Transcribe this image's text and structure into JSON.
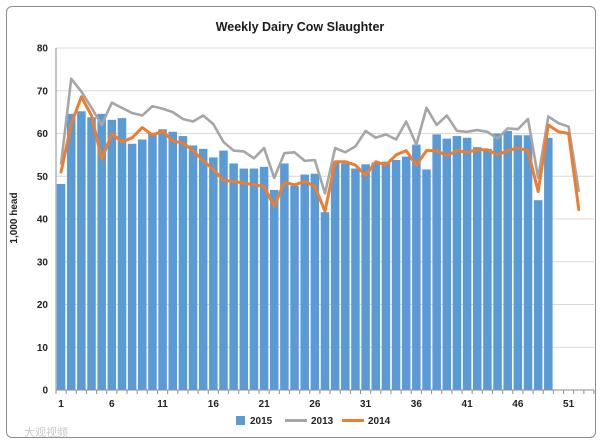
{
  "chart_data": {
    "type": "bar",
    "title": "Weekly Dairy Cow Slaughter",
    "ylabel": "1,000 head",
    "xlabel": "",
    "ylim": [
      0,
      80
    ],
    "yticks": [
      0,
      10,
      20,
      30,
      40,
      50,
      60,
      70,
      80
    ],
    "xtick_labels": [
      "1",
      "6",
      "11",
      "16",
      "21",
      "26",
      "31",
      "36",
      "41",
      "46",
      "51"
    ],
    "grid": true,
    "legend_position": "bottom",
    "series": [
      {
        "name": "2015",
        "type": "bar",
        "color": "#5b9bd5",
        "values": [
          48.2,
          64.6,
          65.2,
          63.8,
          64.6,
          63.2,
          63.6,
          57.6,
          58.6,
          60.2,
          61.0,
          60.4,
          59.4,
          57.2,
          56.4,
          54.4,
          56.0,
          53.0,
          51.8,
          51.8,
          52.2,
          46.8,
          53.0,
          47.8,
          50.4,
          50.6,
          41.6,
          53.4,
          53.0,
          51.8,
          52.8,
          53.2,
          53.4,
          53.8,
          54.6,
          57.4,
          51.6,
          59.8,
          58.8,
          59.4,
          59.0,
          56.8,
          56.4,
          60.0,
          60.6,
          59.6,
          59.6,
          44.4,
          59.0
        ]
      },
      {
        "name": "2013",
        "type": "line",
        "color": "#a6a6a6",
        "values": [
          53.0,
          72.8,
          69.8,
          66.0,
          62.0,
          67.2,
          66.0,
          64.8,
          64.2,
          66.4,
          65.8,
          65.0,
          63.4,
          62.8,
          64.2,
          62.2,
          58.0,
          56.0,
          55.8,
          54.2,
          56.6,
          49.6,
          55.4,
          55.6,
          53.6,
          53.8,
          46.0,
          56.6,
          55.6,
          57.0,
          60.6,
          59.0,
          59.8,
          58.6,
          62.8,
          57.4,
          66.0,
          62.0,
          64.2,
          60.6,
          60.4,
          60.8,
          60.4,
          58.8,
          61.2,
          61.0,
          63.4,
          49.6,
          64.0,
          62.4,
          61.6,
          46.6
        ]
      },
      {
        "name": "2014",
        "type": "line",
        "color": "#ed7d31",
        "values": [
          51.0,
          62.2,
          68.6,
          64.2,
          54.0,
          60.0,
          58.0,
          59.0,
          61.4,
          59.6,
          60.6,
          58.2,
          57.8,
          56.0,
          53.6,
          51.6,
          49.0,
          48.8,
          48.4,
          48.0,
          47.6,
          43.0,
          48.6,
          48.0,
          48.8,
          47.6,
          41.8,
          53.4,
          53.4,
          52.6,
          50.2,
          53.4,
          52.6,
          55.0,
          56.0,
          52.6,
          56.0,
          56.0,
          54.8,
          56.0,
          55.6,
          56.2,
          56.2,
          55.0,
          56.0,
          56.6,
          56.0,
          46.4,
          62.0,
          60.4,
          60.0,
          42.2
        ]
      }
    ]
  },
  "watermark": "大观视频"
}
